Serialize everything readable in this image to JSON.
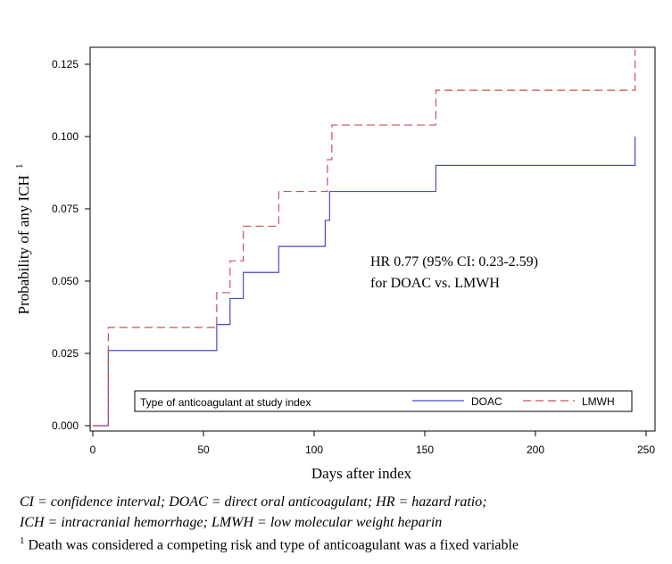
{
  "chart_data": {
    "type": "line",
    "step": true,
    "xlabel": "Days after index",
    "ylabel": "Probability of any ICH",
    "ylabel_superscript": "1",
    "xlim": [
      0,
      250
    ],
    "ylim": [
      0,
      0.13
    ],
    "xticks": [
      0,
      50,
      100,
      150,
      200,
      250
    ],
    "yticks": [
      0.0,
      0.025,
      0.05,
      0.075,
      0.1,
      0.125
    ],
    "xtick_labels": [
      "0",
      "50",
      "100",
      "150",
      "200",
      "250"
    ],
    "ytick_labels": [
      "0.000",
      "0.025",
      "0.050",
      "0.075",
      "0.100",
      "0.125"
    ],
    "grid": false,
    "legend": {
      "title": "Type of anticoagulant at study index",
      "placement": "bottom"
    },
    "annotation": [
      "HR 0.77 (95% CI: 0.23-2.59)",
      "for DOAC vs. LMWH"
    ],
    "series": [
      {
        "name": "DOAC",
        "color": "#4b4bc8",
        "dash": "solid",
        "x": [
          0,
          7,
          56,
          62,
          68,
          84,
          105,
          107,
          155,
          245
        ],
        "y": [
          0.0,
          0.026,
          0.035,
          0.044,
          0.053,
          0.062,
          0.071,
          0.081,
          0.09,
          0.1
        ]
      },
      {
        "name": "LMWH",
        "color": "#c8505a",
        "dash": "dashed",
        "x": [
          0,
          7,
          56,
          62,
          68,
          84,
          106,
          108,
          155,
          245
        ],
        "y": [
          0.0,
          0.034,
          0.046,
          0.057,
          0.069,
          0.081,
          0.092,
          0.104,
          0.116,
          0.13
        ]
      }
    ]
  },
  "footnotes": {
    "line1": "CI = confidence interval; DOAC = direct oral anticoagulant; HR = hazard ratio;",
    "line2": "ICH = intracranial hemorrhage; LMWH = low molecular weight heparin",
    "line3_sup": "1",
    "line3": " Death was considered a competing risk and type of anticoagulant was a fixed variable"
  }
}
